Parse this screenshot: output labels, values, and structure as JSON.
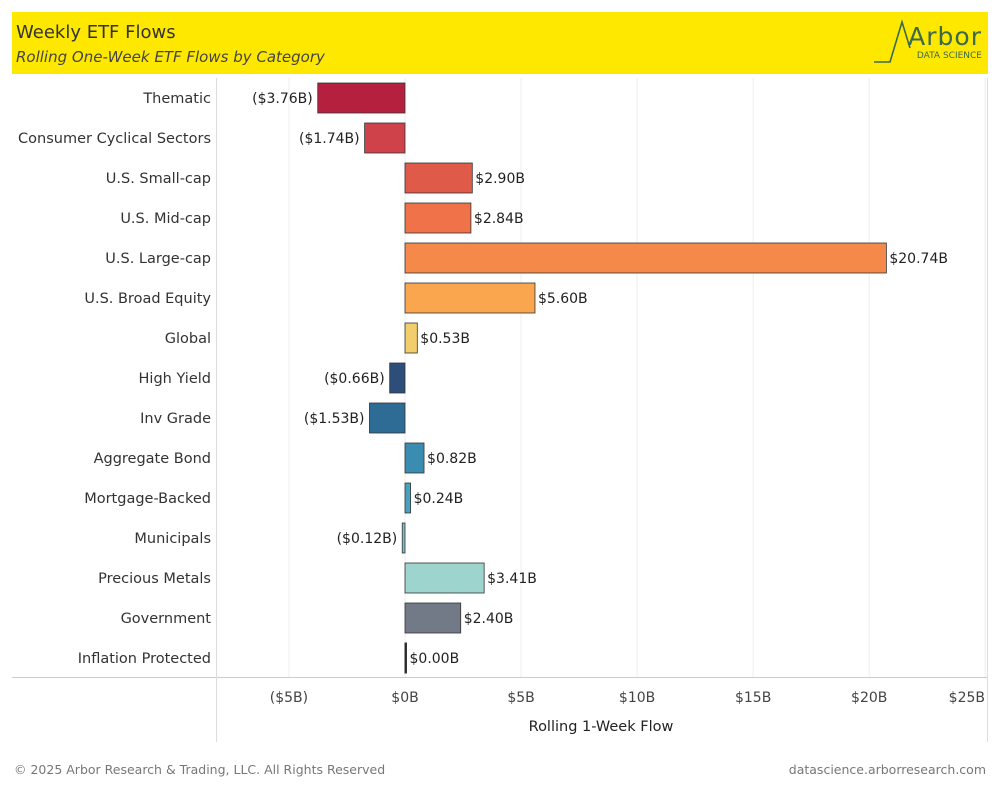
{
  "header": {
    "title": "Weekly ETF Flows",
    "subtitle": "Rolling One-Week ETF Flows by Category",
    "logo_text": "Arbor",
    "logo_sub": "DATA SCIENCE"
  },
  "footer": {
    "copyright": "© 2025 Arbor Research & Trading, LLC. All Rights Reserved",
    "site": "datascience.arborresearch.com"
  },
  "chart_data": {
    "type": "bar",
    "orientation": "horizontal",
    "title": "Weekly ETF Flows",
    "xlabel": "Rolling 1-Week Flow",
    "ylabel": "",
    "xlim": [
      -8.1,
      25.2
    ],
    "x_ticks": [
      -5,
      0,
      5,
      10,
      15,
      20,
      25
    ],
    "x_tick_labels": [
      "($5B)",
      "$0B",
      "$5B",
      "$10B",
      "$15B",
      "$20B",
      "$25B"
    ],
    "grid": true,
    "categories": [
      "Thematic",
      "Consumer Cyclical Sectors",
      "U.S. Small-cap",
      "U.S. Mid-cap",
      "U.S. Large-cap",
      "U.S. Broad Equity",
      "Global",
      "High Yield",
      "Inv Grade",
      "Aggregate Bond",
      "Mortgage-Backed",
      "Municipals",
      "Precious Metals",
      "Government",
      "Inflation Protected"
    ],
    "values": [
      -3.76,
      -1.74,
      2.9,
      2.84,
      20.74,
      5.6,
      0.53,
      -0.66,
      -1.53,
      0.82,
      0.24,
      -0.12,
      3.41,
      2.4,
      0.0
    ],
    "data_labels": [
      "($3.76B)",
      "($1.74B)",
      "$2.90B",
      "$2.84B",
      "$20.74B",
      "$5.60B",
      "$0.53B",
      "($0.66B)",
      "($1.53B)",
      "$0.82B",
      "$0.24B",
      "($0.12B)",
      "$3.41B",
      "$2.40B",
      "$0.00B"
    ],
    "colors": [
      "#b5203f",
      "#d0424a",
      "#e05a4a",
      "#ef7248",
      "#f5894a",
      "#f9a64f",
      "#f2cd6b",
      "#2e4e7a",
      "#2e6c96",
      "#3a8cb0",
      "#4aa1be",
      "#7fbfc6",
      "#9dd4ce",
      "#737a87",
      "#222222"
    ]
  }
}
